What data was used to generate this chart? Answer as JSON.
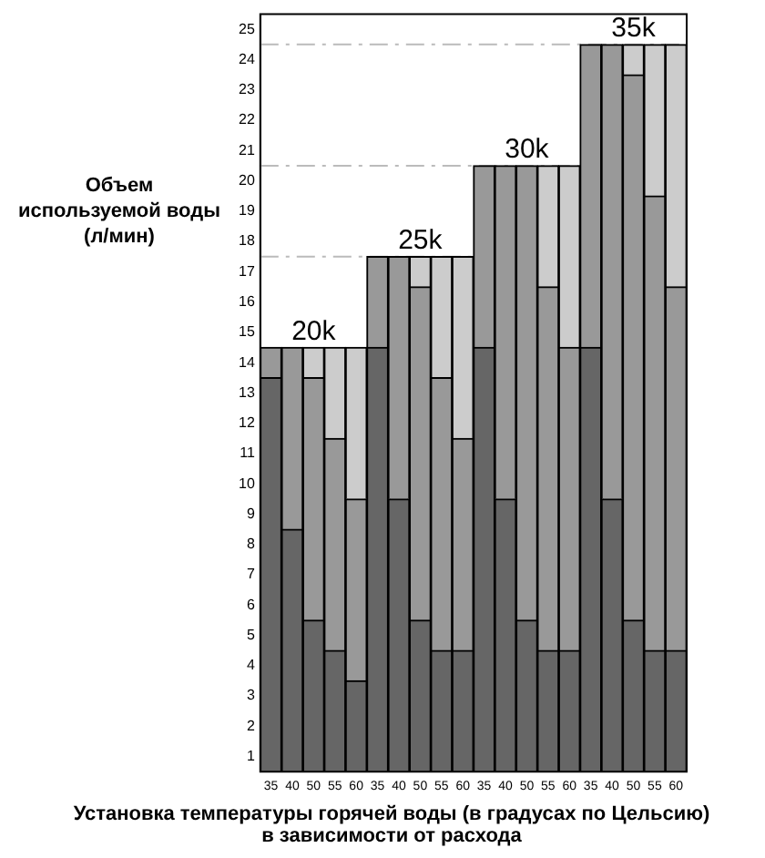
{
  "chart_data": {
    "type": "bar",
    "stacked": true,
    "ylabel": "Объем используемой воды (л/мин)",
    "xlabel": "Установка температуры горячей воды (в градусах по Цельсию) в зависимости от расхода",
    "categories": [
      "35",
      "40",
      "50",
      "55",
      "60",
      "35",
      "40",
      "50",
      "55",
      "60",
      "35",
      "40",
      "50",
      "55",
      "60",
      "35",
      "40",
      "50",
      "55",
      "60"
    ],
    "series": [
      {
        "color": "#666666",
        "values": [
          13,
          8,
          5,
          4,
          3,
          14,
          9,
          5,
          4,
          4,
          14,
          9,
          5,
          4,
          4,
          14,
          9,
          5,
          4,
          4
        ]
      },
      {
        "color": "#999999",
        "values": [
          1,
          6,
          8,
          7,
          6,
          3,
          8,
          11,
          9,
          7,
          6,
          11,
          15,
          12,
          10,
          10,
          15,
          18,
          15,
          12
        ]
      },
      {
        "color": "#cccccc",
        "values": [
          0,
          0,
          1,
          3,
          5,
          0,
          0,
          1,
          4,
          6,
          0,
          0,
          0,
          4,
          6,
          0,
          0,
          1,
          5,
          8
        ]
      }
    ],
    "ylim": [
      0,
      25
    ],
    "yticks": [
      {
        "value": 0.5,
        "label": "1"
      },
      {
        "value": 1.5,
        "label": "2"
      },
      {
        "value": 2.5,
        "label": "3"
      },
      {
        "value": 3.5,
        "label": "4"
      },
      {
        "value": 4.5,
        "label": "5"
      },
      {
        "value": 5.5,
        "label": "6"
      },
      {
        "value": 6.5,
        "label": "7"
      },
      {
        "value": 7.5,
        "label": "8"
      },
      {
        "value": 8.5,
        "label": "9"
      },
      {
        "value": 9.5,
        "label": "10"
      },
      {
        "value": 10.5,
        "label": "11"
      },
      {
        "value": 11.5,
        "label": "12"
      },
      {
        "value": 12.5,
        "label": "13"
      },
      {
        "value": 13.5,
        "label": "14"
      },
      {
        "value": 14.5,
        "label": "15"
      },
      {
        "value": 15.5,
        "label": "16"
      },
      {
        "value": 16.5,
        "label": "17"
      },
      {
        "value": 17.5,
        "label": "18"
      },
      {
        "value": 18.5,
        "label": "19"
      },
      {
        "value": 19.5,
        "label": "20"
      },
      {
        "value": 20.5,
        "label": "21"
      },
      {
        "value": 21.5,
        "label": "22"
      },
      {
        "value": 22.5,
        "label": "23"
      },
      {
        "value": 23.5,
        "label": "24"
      },
      {
        "value": 24.5,
        "label": "25"
      }
    ],
    "annotations": [
      {
        "text": "20k",
        "y": 14
      },
      {
        "text": "25k",
        "y": 17
      },
      {
        "text": "30k",
        "y": 20
      },
      {
        "text": "35k",
        "y": 24
      }
    ],
    "ref_lines": [
      {
        "axis": "y",
        "value": 17,
        "color": "#bbbbbb",
        "line_style": "dashdot"
      },
      {
        "axis": "y",
        "value": 20,
        "color": "#bbbbbb",
        "line_style": "dashdot"
      },
      {
        "axis": "y",
        "value": 24,
        "color": "#bbbbbb",
        "line_style": "dashdot"
      }
    ],
    "grid": false,
    "legend": false
  }
}
